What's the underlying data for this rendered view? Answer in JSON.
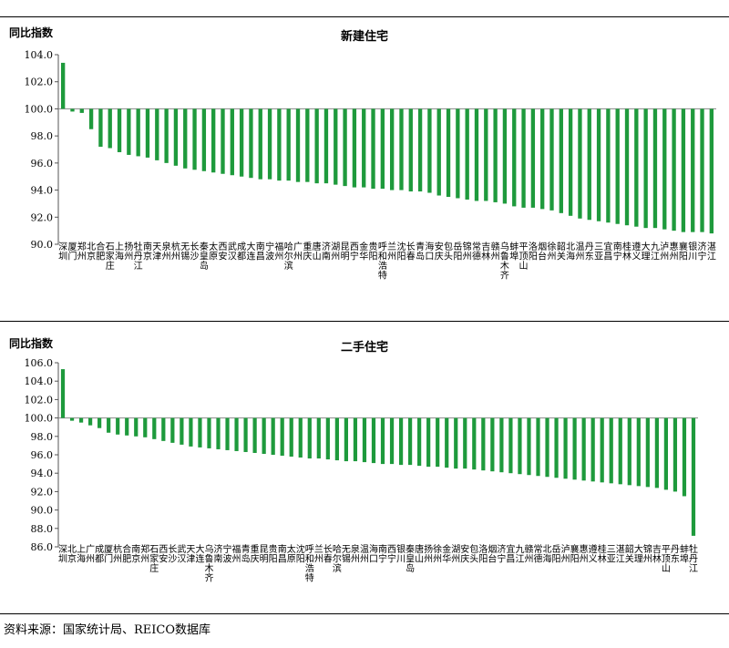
{
  "note": "资料来源：国家统计局、REICO数据库",
  "colors": {
    "bar": "#1e9a3c",
    "axis": "#555555",
    "baseline": "#888888"
  },
  "chart_data": [
    {
      "type": "bar",
      "title": "新建住宅",
      "ylabel": "同比指数",
      "ylim": [
        90,
        104
      ],
      "yticks": [
        "90.0",
        "92.0",
        "94.0",
        "96.0",
        "98.0",
        "100.0",
        "102.0",
        "104.0"
      ],
      "baseline": 100,
      "categories": [
        "深圳",
        "厦门",
        "郑州",
        "北京",
        "合肥",
        "石家庄",
        "上海",
        "扬州",
        "牡丹江",
        "南京",
        "天津",
        "泉州",
        "杭州",
        "无锡",
        "长沙",
        "秦皇岛",
        "太原",
        "西安",
        "武汉",
        "成都",
        "大连",
        "南昌",
        "宁波",
        "福州",
        "哈尔滨",
        "广州",
        "重庆",
        "唐山",
        "济南",
        "湖州",
        "昆明",
        "西宁",
        "金华",
        "贵阳",
        "呼和浩特",
        "兰州",
        "沈阳",
        "长春",
        "青岛",
        "海口",
        "安庆",
        "包头",
        "岳阳",
        "锦州",
        "常德",
        "吉林",
        "赣州",
        "乌鲁木齐",
        "蚌埠",
        "平顶山",
        "洛阳",
        "烟台",
        "徐州",
        "韶关",
        "北海",
        "温州",
        "丹东",
        "三亚",
        "宜昌",
        "南宁",
        "桂林",
        "遵义",
        "大理",
        "九江",
        "泸州",
        "惠州",
        "襄阳",
        "银川",
        "济宁",
        "湛江"
      ],
      "values": [
        103.4,
        99.8,
        99.7,
        98.5,
        97.2,
        97.1,
        96.8,
        96.6,
        96.5,
        96.4,
        96.2,
        96.0,
        95.8,
        95.6,
        95.5,
        95.4,
        95.3,
        95.2,
        95.1,
        95.0,
        94.9,
        94.8,
        94.8,
        94.7,
        94.7,
        94.6,
        94.6,
        94.5,
        94.5,
        94.4,
        94.3,
        94.2,
        94.2,
        94.1,
        94.1,
        94.0,
        94.0,
        93.9,
        93.9,
        93.8,
        93.6,
        93.5,
        93.4,
        93.3,
        93.2,
        93.2,
        93.1,
        93.0,
        92.8,
        92.7,
        92.7,
        92.6,
        92.5,
        92.3,
        92.1,
        91.9,
        91.8,
        91.7,
        91.6,
        91.5,
        91.4,
        91.3,
        91.2,
        91.2,
        91.1,
        91.0,
        90.9,
        90.9,
        90.9,
        90.8
      ]
    },
    {
      "type": "bar",
      "title": "二手住宅",
      "ylabel": "同比指数",
      "ylim": [
        86,
        106
      ],
      "yticks": [
        "86.0",
        "88.0",
        "90.0",
        "92.0",
        "94.0",
        "96.0",
        "98.0",
        "100.0",
        "102.0",
        "104.0",
        "106.0"
      ],
      "baseline": 100,
      "categories": [
        "深圳",
        "北京",
        "上海",
        "广州",
        "成都",
        "厦门",
        "杭州",
        "合肥",
        "南京",
        "郑州",
        "石家庄",
        "西安",
        "长沙",
        "武汉",
        "天津",
        "大连",
        "乌鲁木齐",
        "济南",
        "宁波",
        "福州",
        "青岛",
        "重庆",
        "昆明",
        "贵阳",
        "南昌",
        "太原",
        "沈阳",
        "呼和浩特",
        "兰州",
        "长春",
        "哈尔滨",
        "无锡",
        "泉州",
        "温州",
        "海口",
        "南宁",
        "西宁",
        "银川",
        "秦皇岛",
        "唐山",
        "扬州",
        "徐州",
        "金华",
        "湖州",
        "安庆",
        "包头",
        "洛阳",
        "烟台",
        "济宁",
        "宜昌",
        "九江",
        "赣州",
        "常德",
        "北海",
        "岳阳",
        "泸州",
        "襄阳",
        "惠州",
        "遵义",
        "桂林",
        "三亚",
        "湛江",
        "韶关",
        "大理",
        "锦州",
        "吉林",
        "平顶山",
        "丹东",
        "蚌埠",
        "牡丹江"
      ],
      "values": [
        105.3,
        99.7,
        99.5,
        99.2,
        98.9,
        98.4,
        98.2,
        98.1,
        98.0,
        97.9,
        97.7,
        97.5,
        97.3,
        97.1,
        96.9,
        96.8,
        96.7,
        96.6,
        96.5,
        96.4,
        96.3,
        96.2,
        96.1,
        96.0,
        95.9,
        95.8,
        95.7,
        95.6,
        95.6,
        95.5,
        95.4,
        95.3,
        95.3,
        95.2,
        95.1,
        95.0,
        95.0,
        94.9,
        94.9,
        94.8,
        94.7,
        94.7,
        94.6,
        94.5,
        94.5,
        94.4,
        94.3,
        94.2,
        94.1,
        94.0,
        93.9,
        93.8,
        93.7,
        93.6,
        93.5,
        93.4,
        93.3,
        93.2,
        93.1,
        93.0,
        92.9,
        92.8,
        92.7,
        92.6,
        92.5,
        92.4,
        92.2,
        92.0,
        91.5,
        87.2
      ]
    }
  ]
}
